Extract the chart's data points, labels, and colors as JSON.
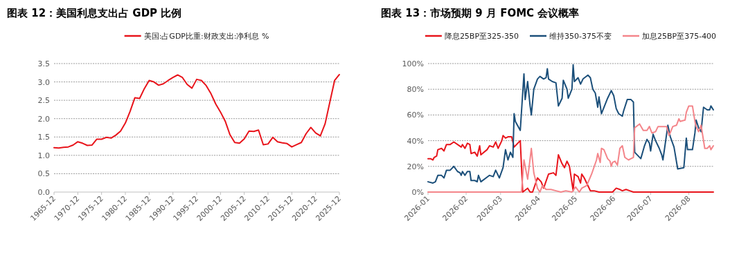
{
  "chart_data": [
    {
      "type": "line",
      "title": "图表 12：美国利息支出占 GDP 比例",
      "legend": "top",
      "grid": "y",
      "x": [
        "1965-12",
        "1966-12",
        "1967-12",
        "1968-12",
        "1969-12",
        "1970-12",
        "1971-12",
        "1972-12",
        "1973-12",
        "1974-12",
        "1975-12",
        "1976-12",
        "1977-12",
        "1978-12",
        "1979-12",
        "1980-12",
        "1981-12",
        "1982-12",
        "1983-12",
        "1984-12",
        "1985-12",
        "1986-12",
        "1987-12",
        "1988-12",
        "1989-12",
        "1990-12",
        "1991-12",
        "1992-12",
        "1993-12",
        "1994-12",
        "1995-12",
        "1996-12",
        "1997-12",
        "1998-12",
        "1999-12",
        "2000-12",
        "2001-12",
        "2002-12",
        "2003-12",
        "2004-12",
        "2005-12",
        "2006-12",
        "2007-12",
        "2008-12",
        "2009-12",
        "2010-12",
        "2011-12",
        "2012-12",
        "2013-12",
        "2014-12",
        "2015-12",
        "2016-12",
        "2017-12",
        "2018-12",
        "2019-12",
        "2020-12",
        "2021-12",
        "2022-12",
        "2023-12",
        "2024-12",
        "2025-12"
      ],
      "xlim": [
        "1965-12",
        "2025-12"
      ],
      "xticks": [
        "1965-12",
        "1970-12",
        "1975-12",
        "1980-12",
        "1985-12",
        "1990-12",
        "1995-12",
        "2000-12",
        "2005-12",
        "2010-12",
        "2015-12",
        "2020-12",
        "2025-12"
      ],
      "ylim": [
        0,
        3.5
      ],
      "yticks": [
        {
          "value": 0,
          "label": "0.0"
        },
        {
          "value": 0.5,
          "label": "0.5"
        },
        {
          "value": 1,
          "label": "1.0"
        },
        {
          "value": 1.5,
          "label": "1.5"
        },
        {
          "value": 2,
          "label": "2.0"
        },
        {
          "value": 2.5,
          "label": "2.5"
        },
        {
          "value": 3,
          "label": "3.0"
        },
        {
          "value": 3.5,
          "label": "3.5"
        }
      ],
      "series": [
        {
          "name": "美国:占GDP比重:财政支出:净利息 %",
          "color": "#e8141b",
          "values": [
            1.21,
            1.2,
            1.22,
            1.23,
            1.28,
            1.37,
            1.33,
            1.27,
            1.28,
            1.44,
            1.44,
            1.49,
            1.47,
            1.55,
            1.66,
            1.88,
            2.2,
            2.57,
            2.55,
            2.82,
            3.04,
            3.0,
            2.91,
            2.95,
            3.04,
            3.12,
            3.19,
            3.12,
            2.93,
            2.83,
            3.07,
            3.04,
            2.9,
            2.68,
            2.4,
            2.18,
            1.93,
            1.56,
            1.35,
            1.33,
            1.45,
            1.66,
            1.65,
            1.69,
            1.29,
            1.31,
            1.49,
            1.37,
            1.34,
            1.32,
            1.23,
            1.29,
            1.35,
            1.59,
            1.76,
            1.61,
            1.53,
            1.86,
            2.45,
            3.04,
            3.2
          ]
        }
      ]
    },
    {
      "type": "line",
      "title": "图表 13：市场预期 9 月 FOMC 会议概率",
      "legend": "top",
      "grid": "y",
      "xlim": [
        "2026-01-01",
        "2026-08-21"
      ],
      "xticks": [
        "2026-01",
        "2026-02",
        "2026-03",
        "2026-04",
        "2026-05",
        "2026-06",
        "2026-07",
        "2026-08"
      ],
      "ylim": [
        0,
        100
      ],
      "yticks": [
        {
          "value": 0,
          "label": "0%"
        },
        {
          "value": 20,
          "label": "20%"
        },
        {
          "value": 40,
          "label": "40%"
        },
        {
          "value": 60,
          "label": "60%"
        },
        {
          "value": 80,
          "label": "80%"
        },
        {
          "value": 100,
          "label": "100%"
        }
      ],
      "series": [
        {
          "name": "降息25BP至325-350",
          "color": "#e8141b",
          "x": [
            "2026-01-01",
            "2026-01-03",
            "2026-01-05",
            "2026-01-06",
            "2026-01-08",
            "2026-01-09",
            "2026-01-12",
            "2026-01-14",
            "2026-01-16",
            "2026-01-19",
            "2026-01-22",
            "2026-01-25",
            "2026-01-28",
            "2026-01-29",
            "2026-01-31",
            "2026-02-02",
            "2026-02-04",
            "2026-02-05",
            "2026-02-08",
            "2026-02-10",
            "2026-02-12",
            "2026-02-13",
            "2026-02-18",
            "2026-02-20",
            "2026-02-23",
            "2026-02-25",
            "2026-02-27",
            "2026-03-02",
            "2026-03-03",
            "2026-03-05",
            "2026-03-07",
            "2026-03-10",
            "2026-03-12",
            "2026-03-14",
            "2026-03-17",
            "2026-03-19",
            "2026-03-23",
            "2026-03-25",
            "2026-03-27",
            "2026-03-31",
            "2026-04-03",
            "2026-04-05",
            "2026-04-09",
            "2026-04-13",
            "2026-04-15",
            "2026-04-17",
            "2026-04-20",
            "2026-04-22",
            "2026-04-24",
            "2026-04-26",
            "2026-04-29",
            "2026-04-30",
            "2026-05-03",
            "2026-05-05",
            "2026-05-06",
            "2026-05-08",
            "2026-05-11",
            "2026-05-13",
            "2026-05-16",
            "2026-05-20",
            "2026-05-31",
            "2026-06-03",
            "2026-06-06",
            "2026-06-08",
            "2026-06-11",
            "2026-06-14",
            "2026-06-17",
            "2026-08-21"
          ],
          "values": [
            26,
            26,
            25,
            27,
            28,
            33,
            34,
            32,
            37,
            37,
            39,
            37,
            35,
            37,
            34,
            38,
            37,
            30,
            31,
            28,
            36,
            29,
            33,
            36,
            35,
            39,
            34,
            40,
            44,
            42,
            43,
            43,
            35,
            37,
            40,
            0,
            3,
            0,
            0,
            11,
            8,
            3,
            14,
            15,
            13,
            29,
            22,
            19,
            24,
            20,
            1,
            14,
            12,
            7,
            14,
            11,
            5,
            1,
            1,
            0,
            0,
            3,
            2,
            1,
            2,
            1,
            0,
            0
          ]
        },
        {
          "name": "维持350-375不变",
          "color": "#1b4f7a",
          "x": [
            "2026-01-01",
            "2026-01-05",
            "2026-01-07",
            "2026-01-09",
            "2026-01-12",
            "2026-01-14",
            "2026-01-16",
            "2026-01-19",
            "2026-01-22",
            "2026-01-25",
            "2026-01-27",
            "2026-01-28",
            "2026-01-29",
            "2026-01-31",
            "2026-02-02",
            "2026-02-04",
            "2026-02-05",
            "2026-02-08",
            "2026-02-10",
            "2026-02-11",
            "2026-02-13",
            "2026-02-20",
            "2026-02-23",
            "2026-02-25",
            "2026-02-28",
            "2026-03-03",
            "2026-03-05",
            "2026-03-07",
            "2026-03-09",
            "2026-03-11",
            "2026-03-12",
            "2026-03-13",
            "2026-03-17",
            "2026-03-20",
            "2026-03-21",
            "2026-03-23",
            "2026-03-25",
            "2026-03-26",
            "2026-03-28",
            "2026-03-31",
            "2026-04-02",
            "2026-04-05",
            "2026-04-07",
            "2026-04-08",
            "2026-04-09",
            "2026-04-12",
            "2026-04-15",
            "2026-04-17",
            "2026-04-20",
            "2026-04-21",
            "2026-04-24",
            "2026-04-25",
            "2026-04-28",
            "2026-04-29",
            "2026-04-30",
            "2026-05-03",
            "2026-05-05",
            "2026-05-07",
            "2026-05-11",
            "2026-05-13",
            "2026-05-15",
            "2026-05-17",
            "2026-05-19",
            "2026-05-20",
            "2026-05-22",
            "2026-05-27",
            "2026-05-30",
            "2026-06-01",
            "2026-06-03",
            "2026-06-05",
            "2026-06-08",
            "2026-06-09",
            "2026-06-12",
            "2026-06-15",
            "2026-06-17",
            "2026-06-18",
            "2026-06-23",
            "2026-06-26",
            "2026-06-28",
            "2026-06-30",
            "2026-07-01",
            "2026-07-03",
            "2026-07-05",
            "2026-07-08",
            "2026-07-10",
            "2026-07-11",
            "2026-07-15",
            "2026-07-17",
            "2026-07-20",
            "2026-07-23",
            "2026-07-28",
            "2026-07-30",
            "2026-07-31",
            "2026-08-04",
            "2026-08-06",
            "2026-08-07",
            "2026-08-09",
            "2026-08-11",
            "2026-08-13",
            "2026-08-16",
            "2026-08-18",
            "2026-08-19",
            "2026-08-21"
          ],
          "values": [
            8,
            7,
            8,
            13,
            13,
            11,
            17,
            17,
            20,
            16,
            15,
            13,
            16,
            13,
            16,
            16,
            9,
            9,
            8,
            13,
            8,
            13,
            12,
            17,
            11,
            19,
            33,
            25,
            31,
            27,
            61,
            55,
            48,
            92,
            72,
            86,
            67,
            60,
            80,
            88,
            90,
            88,
            89,
            96,
            88,
            86,
            85,
            67,
            73,
            87,
            80,
            73,
            80,
            99,
            86,
            89,
            84,
            88,
            91,
            89,
            80,
            77,
            66,
            74,
            61,
            73,
            79,
            75,
            65,
            61,
            59,
            63,
            72,
            72,
            70,
            31,
            26,
            36,
            41,
            38,
            32,
            45,
            40,
            34,
            29,
            25,
            52,
            43,
            35,
            18,
            19,
            42,
            33,
            33,
            46,
            56,
            50,
            47,
            66,
            64,
            64,
            67,
            64
          ]
        },
        {
          "name": "加息25BP至375-400",
          "color": "#f4858a",
          "x": [
            "2026-01-01",
            "2026-03-18",
            "2026-03-20",
            "2026-03-23",
            "2026-03-26",
            "2026-03-28",
            "2026-03-31",
            "2026-04-02",
            "2026-04-04",
            "2026-04-07",
            "2026-04-11",
            "2026-04-15",
            "2026-04-19",
            "2026-04-23",
            "2026-04-28",
            "2026-05-01",
            "2026-05-04",
            "2026-05-06",
            "2026-05-10",
            "2026-05-14",
            "2026-05-18",
            "2026-05-19",
            "2026-05-21",
            "2026-05-22",
            "2026-05-24",
            "2026-05-27",
            "2026-05-29",
            "2026-05-30",
            "2026-05-31",
            "2026-06-02",
            "2026-06-04",
            "2026-06-06",
            "2026-06-08",
            "2026-06-10",
            "2026-06-13",
            "2026-06-15",
            "2026-06-17",
            "2026-06-18",
            "2026-06-22",
            "2026-06-25",
            "2026-06-28",
            "2026-06-30",
            "2026-07-02",
            "2026-07-05",
            "2026-07-07",
            "2026-07-11",
            "2026-07-14",
            "2026-07-16",
            "2026-07-19",
            "2026-07-22",
            "2026-07-24",
            "2026-07-25",
            "2026-07-29",
            "2026-07-30",
            "2026-08-01",
            "2026-08-04",
            "2026-08-06",
            "2026-08-07",
            "2026-08-09",
            "2026-08-11",
            "2026-08-14",
            "2026-08-16",
            "2026-08-18",
            "2026-08-19",
            "2026-08-21"
          ],
          "values": [
            0,
            0,
            25,
            10,
            34,
            15,
            3,
            0,
            5,
            2,
            2,
            1,
            0,
            1,
            0,
            4,
            0,
            3,
            5,
            14,
            25,
            30,
            23,
            34,
            33,
            26,
            24,
            20,
            23,
            24,
            21,
            34,
            36,
            27,
            25,
            26,
            27,
            50,
            53,
            48,
            48,
            51,
            46,
            47,
            51,
            51,
            51,
            44,
            51,
            52,
            57,
            55,
            56,
            62,
            67,
            67,
            55,
            51,
            47,
            52,
            34,
            34,
            36,
            33,
            36
          ]
        }
      ]
    }
  ]
}
